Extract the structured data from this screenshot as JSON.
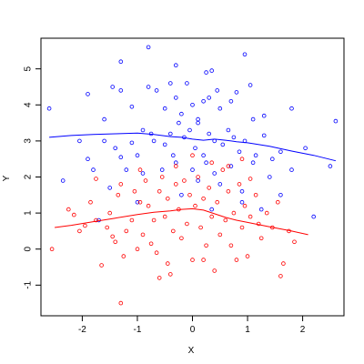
{
  "chart_data": {
    "type": "scatter",
    "xlabel": "X",
    "ylabel": "Y",
    "xlim": [
      -2.75,
      2.75
    ],
    "ylim": [
      -1.85,
      5.85
    ],
    "x_ticks": [
      -2,
      -1,
      0,
      1,
      2
    ],
    "x_tick_labels": [
      "-2",
      "-1",
      "0",
      "1",
      "2"
    ],
    "y_ticks": [
      -1,
      0,
      1,
      2,
      3,
      4,
      5
    ],
    "y_tick_labels": [
      "-1",
      "0",
      "1",
      "2",
      "3",
      "4",
      "5"
    ],
    "grid": false,
    "series": [
      {
        "color": "#0000ff",
        "marker": "circle-open",
        "points": [
          [
            -2.6,
            3.9
          ],
          [
            -1.9,
            4.3
          ],
          [
            -1.6,
            3.6
          ],
          [
            -1.45,
            4.5
          ],
          [
            -1.3,
            4.4
          ],
          [
            -1.3,
            5.2
          ],
          [
            -1.1,
            3.95
          ],
          [
            -0.8,
            5.6
          ],
          [
            -0.8,
            4.5
          ],
          [
            -0.65,
            4.4
          ],
          [
            -0.5,
            3.9
          ],
          [
            -0.4,
            4.6
          ],
          [
            -0.3,
            5.1
          ],
          [
            -0.3,
            4.2
          ],
          [
            -0.2,
            3.75
          ],
          [
            -0.1,
            4.6
          ],
          [
            0,
            4.0
          ],
          [
            0.1,
            3.6
          ],
          [
            0.2,
            4.1
          ],
          [
            0.25,
            4.9
          ],
          [
            0.35,
            4.95
          ],
          [
            0.3,
            4.2
          ],
          [
            0.45,
            4.4
          ],
          [
            0.5,
            3.9
          ],
          [
            0.7,
            4.1
          ],
          [
            0.8,
            4.35
          ],
          [
            0.95,
            5.4
          ],
          [
            1.05,
            4.55
          ],
          [
            1.1,
            3.6
          ],
          [
            1.3,
            3.7
          ],
          [
            1.8,
            3.9
          ],
          [
            2.6,
            3.55
          ],
          [
            -2.05,
            3.0
          ],
          [
            -1.9,
            2.5
          ],
          [
            -1.8,
            2.2
          ],
          [
            -1.6,
            3.0
          ],
          [
            -1.4,
            2.8
          ],
          [
            -1.3,
            2.55
          ],
          [
            -1.1,
            2.95
          ],
          [
            -1.0,
            2.6
          ],
          [
            -0.9,
            3.3
          ],
          [
            -0.75,
            3.2
          ],
          [
            -0.7,
            3.0
          ],
          [
            -0.5,
            2.9
          ],
          [
            -0.4,
            3.2
          ],
          [
            -0.35,
            2.6
          ],
          [
            -0.25,
            3.5
          ],
          [
            -0.15,
            3.1
          ],
          [
            -0.05,
            3.3
          ],
          [
            0.05,
            2.8
          ],
          [
            0.1,
            3.5
          ],
          [
            0.2,
            2.6
          ],
          [
            0.3,
            3.2
          ],
          [
            0.4,
            3.0
          ],
          [
            0.55,
            2.9
          ],
          [
            0.65,
            3.3
          ],
          [
            0.75,
            3.1
          ],
          [
            0.85,
            2.7
          ],
          [
            0.95,
            3.0
          ],
          [
            1.15,
            2.6
          ],
          [
            1.3,
            3.15
          ],
          [
            1.45,
            2.5
          ],
          [
            1.6,
            2.7
          ],
          [
            1.8,
            2.2
          ],
          [
            2.05,
            2.8
          ],
          [
            2.5,
            2.3
          ],
          [
            -2.35,
            1.9
          ],
          [
            -1.5,
            1.7
          ],
          [
            -1.2,
            2.2
          ],
          [
            -0.9,
            2.1
          ],
          [
            -0.55,
            2.2
          ],
          [
            -0.3,
            2.4
          ],
          [
            0.0,
            2.2
          ],
          [
            0.1,
            1.9
          ],
          [
            0.25,
            2.4
          ],
          [
            0.4,
            2.1
          ],
          [
            0.5,
            1.8
          ],
          [
            0.7,
            2.3
          ],
          [
            0.9,
            1.6
          ],
          [
            1.1,
            2.4
          ],
          [
            1.4,
            2.0
          ],
          [
            1.6,
            1.5
          ],
          [
            2.2,
            0.9
          ],
          [
            -1.0,
            1.3
          ],
          [
            -0.2,
            1.5
          ],
          [
            0.35,
            1.1
          ],
          [
            0.9,
            1.3
          ],
          [
            1.25,
            1.1
          ],
          [
            -1.7,
            0.8
          ]
        ]
      },
      {
        "color": "#ff0000",
        "marker": "circle-open",
        "points": [
          [
            -2.55,
            0.0
          ],
          [
            -2.25,
            1.1
          ],
          [
            -2.05,
            0.5
          ],
          [
            -1.95,
            0.65
          ],
          [
            -1.85,
            1.3
          ],
          [
            -1.75,
            0.8
          ],
          [
            -1.65,
            -0.45
          ],
          [
            -1.55,
            0.6
          ],
          [
            -1.5,
            1.0
          ],
          [
            -1.4,
            0.2
          ],
          [
            -1.35,
            1.5
          ],
          [
            -1.25,
            -0.2
          ],
          [
            -1.2,
            0.5
          ],
          [
            -1.1,
            0.8
          ],
          [
            -1.05,
            1.6
          ],
          [
            -1.0,
            0.0
          ],
          [
            -0.95,
            1.3
          ],
          [
            -0.9,
            0.4
          ],
          [
            -0.85,
            1.9
          ],
          [
            -0.8,
            1.2
          ],
          [
            -0.7,
            0.8
          ],
          [
            -0.65,
            -0.1
          ],
          [
            -0.6,
            1.6
          ],
          [
            -0.55,
            2.0
          ],
          [
            -0.5,
            0.9
          ],
          [
            -0.45,
            1.4
          ],
          [
            -0.4,
            -0.7
          ],
          [
            -0.35,
            0.5
          ],
          [
            -0.3,
            1.8
          ],
          [
            -0.25,
            1.1
          ],
          [
            -0.2,
            0.3
          ],
          [
            -0.15,
            1.9
          ],
          [
            -0.1,
            0.7
          ],
          [
            -0.05,
            1.5
          ],
          [
            0.0,
            -0.3
          ],
          [
            0.05,
            1.2
          ],
          [
            0.1,
            2.0
          ],
          [
            0.15,
            0.6
          ],
          [
            0.2,
            1.4
          ],
          [
            0.25,
            0.1
          ],
          [
            0.3,
            1.7
          ],
          [
            0.35,
            0.9
          ],
          [
            0.4,
            -0.6
          ],
          [
            0.45,
            1.3
          ],
          [
            0.5,
            0.4
          ],
          [
            0.55,
            2.2
          ],
          [
            0.6,
            0.8
          ],
          [
            0.65,
            1.6
          ],
          [
            0.7,
            0.1
          ],
          [
            0.75,
            1.0
          ],
          [
            0.8,
            -0.3
          ],
          [
            0.85,
            1.8
          ],
          [
            0.9,
            0.6
          ],
          [
            0.95,
            1.2
          ],
          [
            1.0,
            -0.2
          ],
          [
            1.05,
            0.9
          ],
          [
            1.15,
            1.5
          ],
          [
            1.25,
            0.3
          ],
          [
            1.35,
            1.0
          ],
          [
            1.45,
            0.6
          ],
          [
            1.55,
            1.3
          ],
          [
            1.65,
            -0.4
          ],
          [
            1.75,
            0.5
          ],
          [
            1.85,
            0.2
          ],
          [
            -1.3,
            -1.5
          ],
          [
            -0.6,
            -0.8
          ],
          [
            1.6,
            -0.75
          ],
          [
            -0.45,
            -0.4
          ],
          [
            0.2,
            -0.3
          ],
          [
            -2.15,
            0.95
          ],
          [
            -1.45,
            0.35
          ],
          [
            -0.75,
            0.15
          ],
          [
            0.65,
            2.3
          ],
          [
            1.2,
            0.7
          ],
          [
            0.0,
            2.6
          ],
          [
            -0.3,
            2.3
          ],
          [
            0.35,
            2.4
          ],
          [
            0.9,
            2.5
          ],
          [
            1.05,
            1.95
          ],
          [
            -0.95,
            2.2
          ],
          [
            -1.3,
            1.8
          ],
          [
            -1.75,
            1.95
          ]
        ]
      }
    ],
    "smooth_lines": [
      {
        "color": "#0000ff",
        "x": [
          -2.6,
          -2.2,
          -1.8,
          -1.4,
          -1.0,
          -0.7,
          -0.4,
          -0.2,
          0.0,
          0.2,
          0.4,
          0.6,
          0.8,
          1.0,
          1.4,
          1.8,
          2.2,
          2.6
        ],
        "y": [
          3.1,
          3.15,
          3.18,
          3.2,
          3.22,
          3.18,
          3.12,
          3.1,
          3.05,
          3.02,
          3.05,
          3.02,
          2.98,
          2.95,
          2.85,
          2.72,
          2.6,
          2.45
        ]
      },
      {
        "color": "#ff0000",
        "x": [
          -2.5,
          -2.2,
          -1.8,
          -1.4,
          -1.0,
          -0.7,
          -0.4,
          -0.2,
          0.0,
          0.2,
          0.4,
          0.6,
          0.8,
          1.0,
          1.4,
          1.8,
          2.1
        ],
        "y": [
          0.6,
          0.66,
          0.76,
          0.86,
          0.96,
          1.02,
          1.06,
          1.1,
          1.12,
          1.08,
          0.98,
          0.88,
          0.8,
          0.74,
          0.62,
          0.5,
          0.4
        ]
      }
    ]
  }
}
